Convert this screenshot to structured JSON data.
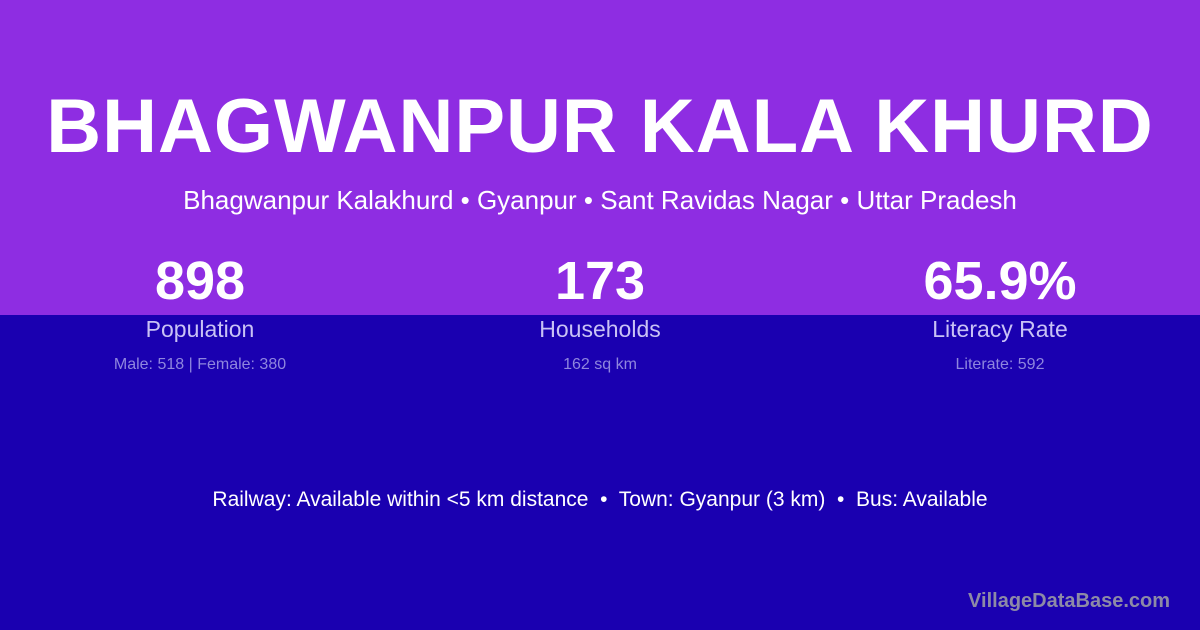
{
  "colors": {
    "top_background": "#8e2de2",
    "bottom_background": "#1a00b0"
  },
  "header": {
    "title": "BHAGWANPUR KALA KHURD",
    "subtitle": "Bhagwanpur Kalakhurd • Gyanpur • Sant Ravidas Nagar • Uttar Pradesh"
  },
  "stats": [
    {
      "value": "898",
      "label": "Population",
      "detail": "Male: 518 | Female: 380"
    },
    {
      "value": "173",
      "label": "Households",
      "detail": "162 sq km"
    },
    {
      "value": "65.9%",
      "label": "Literacy Rate",
      "detail": "Literate: 592"
    }
  ],
  "facts": "Railway: Available within <5 km distance  •  Town: Gyanpur (3 km)  •  Bus: Available",
  "brand": "VillageDataBase.com"
}
